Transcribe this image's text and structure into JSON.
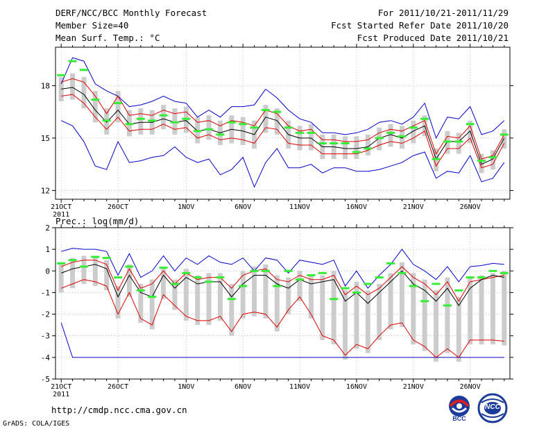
{
  "header": {
    "title": "DERF/NCC/BCC Monthly Forecast",
    "member_size": "Member Size=40",
    "variable_top": "Mean Surf. Temp.: °C",
    "period": "For 2011/10/21-2011/11/29",
    "fcst_started": "Fcst Started Refer Date 2011/10/20",
    "fcst_produced": "Fcst Produced Date 2011/10/21"
  },
  "footer": {
    "url": "http://cmdp.ncc.cma.gov.cn",
    "grads": "GrADS: COLA/IGES",
    "logo_left": "BCC",
    "logo_right": "NCC"
  },
  "colors": {
    "envelope": "#0000cc",
    "mean_sd": "#dd0000",
    "mean": "#000000",
    "obs": "#33ee33",
    "box": "#cccccc",
    "frame": "#000000",
    "grid": "#999999"
  },
  "chart_data": [
    {
      "type": "line",
      "title": "Mean Surf. Temp.: °C",
      "x_tick_labels": [
        "21OCT",
        "26OCT",
        "1NOV",
        "6NOV",
        "11NOV",
        "16NOV",
        "21NOV",
        "26NOV"
      ],
      "x_tick_days": [
        0,
        5,
        11,
        16,
        21,
        26,
        31,
        36
      ],
      "x_year_label": "2011",
      "xlim": [
        -0.5,
        39.5
      ],
      "ylim": [
        11.5,
        20.2
      ],
      "y_ticks": [
        12,
        15,
        18
      ],
      "grid": true,
      "series": [
        {
          "name": "max",
          "color": "blue",
          "values": [
            18.1,
            19.6,
            19.4,
            18.1,
            17.7,
            17.4,
            16.8,
            16.9,
            17.1,
            17.4,
            17.1,
            17.0,
            16.2,
            16.6,
            16.2,
            16.8,
            16.8,
            16.9,
            17.8,
            17.3,
            16.6,
            16.1,
            15.9,
            15.3,
            15.3,
            15.2,
            15.3,
            15.5,
            15.9,
            16.0,
            15.8,
            16.2,
            17.0,
            15.0,
            16.2,
            16.1,
            16.8,
            15.2,
            15.4,
            16.0
          ]
        },
        {
          "name": "mean_plus_sd",
          "color": "red",
          "values": [
            18.2,
            18.4,
            18.2,
            17.4,
            16.4,
            17.4,
            16.3,
            16.4,
            16.3,
            16.6,
            16.4,
            16.5,
            15.9,
            16.0,
            15.7,
            16.0,
            15.9,
            15.7,
            16.6,
            16.4,
            15.7,
            15.4,
            15.5,
            14.9,
            14.9,
            14.8,
            14.8,
            14.9,
            15.3,
            15.5,
            15.4,
            15.7,
            16.0,
            14.1,
            15.1,
            15.0,
            15.7,
            13.8,
            14.0,
            15.2
          ]
        },
        {
          "name": "mean",
          "color": "black",
          "values": [
            17.8,
            17.9,
            17.5,
            16.6,
            15.9,
            16.6,
            15.8,
            15.9,
            15.9,
            16.1,
            15.9,
            16.0,
            15.4,
            15.5,
            15.3,
            15.5,
            15.4,
            15.2,
            16.2,
            16.0,
            15.2,
            15.0,
            15.0,
            14.5,
            14.5,
            14.4,
            14.4,
            14.5,
            15.0,
            15.2,
            15.0,
            15.4,
            15.7,
            13.8,
            14.8,
            14.8,
            15.4,
            13.5,
            13.8,
            15.0
          ]
        },
        {
          "name": "mean_minus_sd",
          "color": "red",
          "values": [
            17.4,
            17.5,
            17.0,
            16.2,
            15.5,
            16.2,
            15.4,
            15.5,
            15.5,
            15.8,
            15.5,
            15.6,
            15.0,
            15.2,
            14.9,
            15.0,
            14.9,
            14.7,
            15.6,
            15.5,
            14.7,
            14.6,
            14.6,
            14.1,
            14.1,
            14.1,
            14.1,
            14.3,
            14.6,
            14.8,
            14.7,
            15.0,
            15.4,
            13.4,
            14.4,
            14.4,
            15.0,
            13.3,
            13.5,
            14.7
          ]
        },
        {
          "name": "min",
          "color": "blue",
          "values": [
            16.0,
            15.7,
            14.8,
            13.4,
            13.2,
            14.8,
            13.6,
            13.7,
            13.9,
            14.0,
            14.5,
            13.9,
            13.6,
            13.8,
            12.9,
            13.2,
            13.9,
            12.2,
            13.6,
            14.4,
            13.3,
            13.3,
            13.5,
            13.0,
            13.3,
            13.3,
            13.1,
            13.1,
            13.2,
            13.4,
            13.6,
            14.0,
            14.2,
            12.7,
            13.1,
            13.0,
            14.0,
            12.5,
            12.7,
            13.6
          ]
        },
        {
          "name": "obs",
          "color": "green",
          "values": [
            18.6,
            19.4,
            18.9,
            17.2,
            16.0,
            17.0,
            15.8,
            16.1,
            16.0,
            16.3,
            15.9,
            16.1,
            15.4,
            15.5,
            15.2,
            15.9,
            15.8,
            15.6,
            16.6,
            16.5,
            15.6,
            15.3,
            15.3,
            14.7,
            14.7,
            14.7,
            14.2,
            14.4,
            15.0,
            15.3,
            15.1,
            15.6,
            16.1,
            13.8,
            14.8,
            14.8,
            15.8,
            13.7,
            13.9,
            15.2
          ]
        }
      ]
    },
    {
      "type": "line",
      "title": "Prec.: log(mm/d)",
      "x_tick_labels": [
        "21OCT",
        "26OCT",
        "1NOV",
        "6NOV",
        "11NOV",
        "16NOV",
        "21NOV",
        "26NOV"
      ],
      "x_tick_days": [
        0,
        5,
        11,
        16,
        21,
        26,
        31,
        36
      ],
      "x_year_label": "2011",
      "xlim": [
        -0.5,
        39.5
      ],
      "ylim": [
        -5,
        2
      ],
      "y_ticks": [
        -5,
        -4,
        -3,
        -2,
        -1,
        0,
        1,
        2
      ],
      "grid": true,
      "series": [
        {
          "name": "max",
          "color": "blue",
          "values": [
            0.9,
            1.05,
            1.0,
            1.0,
            0.9,
            -0.2,
            0.8,
            -0.3,
            0.0,
            0.7,
            0.0,
            0.6,
            0.3,
            0.7,
            0.4,
            0.3,
            0.6,
            0.0,
            0.6,
            0.5,
            -0.1,
            0.5,
            0.4,
            0.3,
            0.5,
            -0.7,
            0.0,
            -0.8,
            -0.2,
            0.3,
            1.0,
            0.3,
            0.0,
            -0.4,
            0.2,
            -0.5,
            0.2,
            0.25,
            0.35,
            0.3
          ]
        },
        {
          "name": "mean_plus_sd",
          "color": "red",
          "values": [
            0.2,
            0.4,
            0.5,
            0.5,
            0.3,
            -0.9,
            0.1,
            -0.8,
            -0.6,
            0.0,
            -0.6,
            -0.1,
            -0.4,
            -0.3,
            -0.3,
            -0.8,
            -0.2,
            0.0,
            0.1,
            -0.4,
            -0.5,
            -0.2,
            -0.4,
            -0.4,
            -0.2,
            -1.1,
            -0.7,
            -1.1,
            -0.8,
            -0.3,
            0.2,
            -0.3,
            -0.6,
            -1.1,
            -0.5,
            -1.4,
            -0.5,
            -0.4,
            -0.3,
            -0.2
          ]
        },
        {
          "name": "mean",
          "color": "black",
          "values": [
            -0.1,
            0.1,
            0.2,
            0.3,
            0.1,
            -1.2,
            -0.2,
            -1.0,
            -1.2,
            -0.2,
            -0.8,
            -0.3,
            -0.6,
            -0.5,
            -0.5,
            -1.2,
            -0.6,
            -0.2,
            -0.2,
            -0.6,
            -0.8,
            -0.4,
            -0.6,
            -0.5,
            -0.4,
            -1.4,
            -1.0,
            -1.5,
            -1.0,
            -0.5,
            0.0,
            -0.6,
            -0.9,
            -1.4,
            -0.8,
            -1.6,
            -0.8,
            -0.4,
            -0.2,
            -0.3
          ]
        },
        {
          "name": "mean_minus_sd",
          "color": "red",
          "values": [
            -0.8,
            -0.6,
            -0.4,
            -0.5,
            -0.7,
            -2.0,
            -1.0,
            -2.2,
            -2.5,
            -1.1,
            -1.6,
            -2.1,
            -2.3,
            -2.3,
            -2.1,
            -2.8,
            -2.0,
            -1.9,
            -2.0,
            -2.6,
            -1.8,
            -1.2,
            -2.0,
            -3.0,
            -3.2,
            -3.9,
            -3.4,
            -3.6,
            -3.0,
            -2.5,
            -2.4,
            -3.2,
            -3.5,
            -4.0,
            -3.6,
            -4.0,
            -3.2,
            -3.2,
            -3.2,
            -3.25
          ]
        },
        {
          "name": "min",
          "color": "blue",
          "values": [
            -2.4,
            -4.0,
            -4.0,
            -4.0,
            -4.0,
            -4.0,
            -4.0,
            -4.0,
            -4.0,
            -4.0,
            -4.0,
            -4.0,
            -4.0,
            -4.0,
            -4.0,
            -4.0,
            -4.0,
            -4.0,
            -4.0,
            -4.0,
            -4.0,
            -4.0,
            -4.0,
            -4.0,
            -4.0,
            -4.0,
            -4.0,
            -4.0,
            -4.0,
            -4.0,
            -4.0,
            -4.0,
            -4.0,
            -4.0,
            -4.0,
            -4.0,
            -4.0,
            -4.0,
            -4.0,
            -4.0
          ]
        },
        {
          "name": "obs",
          "color": "green",
          "values": [
            0.35,
            0.5,
            0.2,
            0.65,
            0.6,
            -0.3,
            0.2,
            -0.9,
            -1.2,
            0.15,
            -0.6,
            -0.1,
            -0.3,
            -0.5,
            -0.3,
            -1.3,
            -0.7,
            0.0,
            0.0,
            -0.7,
            0.0,
            -0.4,
            -0.2,
            -0.1,
            -1.3,
            -0.8,
            -1.0,
            -0.6,
            -0.3,
            0.35,
            -0.1,
            -0.7,
            -1.4,
            -0.6,
            -1.6,
            -0.9,
            -0.3,
            -0.3,
            0.0,
            -0.1
          ]
        }
      ]
    }
  ]
}
